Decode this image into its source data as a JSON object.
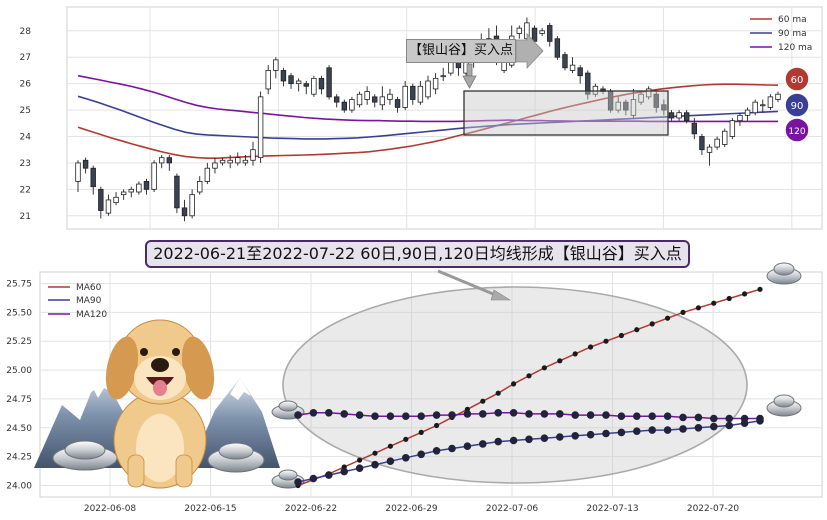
{
  "banner_text": "2022-06-21至2022-07-22 60日,90日,120日均线形成【银山谷】买入点",
  "callout_text": "【银山谷】买入点",
  "colors": {
    "ma60": "#b03a33",
    "ma90": "#3a3f96",
    "ma120": "#7a14a0",
    "up": "#ffffff",
    "down": "#3b4252"
  },
  "chart_data": [
    {
      "type": "candlestick",
      "y_ticks": [
        21,
        22,
        23,
        24,
        25,
        26,
        27,
        28
      ],
      "ylim": [
        20.5,
        28.9
      ],
      "legend": [
        "60 ma",
        "90 ma",
        "120 ma"
      ],
      "legend_position": "top-right",
      "badges": [
        "60",
        "90",
        "120"
      ],
      "grid": true,
      "candles": [
        [
          22.3,
          23.0,
          21.9,
          23.1
        ],
        [
          23.1,
          22.8,
          22.6,
          23.2
        ],
        [
          22.8,
          22.1,
          21.8,
          22.9
        ],
        [
          22.0,
          21.2,
          20.9,
          22.1
        ],
        [
          21.1,
          21.6,
          21.0,
          21.8
        ],
        [
          21.5,
          21.7,
          21.4,
          21.9
        ],
        [
          21.8,
          21.9,
          21.6,
          22.0
        ],
        [
          21.9,
          22.0,
          21.7,
          22.1
        ],
        [
          21.9,
          22.2,
          21.8,
          22.3
        ],
        [
          22.3,
          22.0,
          21.8,
          22.4
        ],
        [
          22.0,
          23.0,
          21.9,
          23.1
        ],
        [
          23.0,
          23.2,
          22.8,
          23.3
        ],
        [
          23.2,
          23.0,
          22.7,
          23.3
        ],
        [
          22.5,
          21.3,
          21.1,
          22.6
        ],
        [
          21.3,
          21.0,
          20.8,
          21.6
        ],
        [
          21.0,
          21.8,
          20.9,
          22.0
        ],
        [
          21.9,
          22.3,
          21.8,
          22.5
        ],
        [
          22.3,
          22.8,
          22.2,
          23.0
        ],
        [
          22.8,
          23.0,
          22.6,
          23.2
        ],
        [
          23.0,
          23.1,
          22.9,
          23.2
        ],
        [
          23.0,
          23.1,
          22.8,
          23.3
        ],
        [
          23.0,
          23.2,
          22.9,
          23.4
        ],
        [
          23.0,
          23.1,
          22.9,
          23.3
        ],
        [
          23.1,
          23.5,
          22.9,
          23.8
        ],
        [
          23.2,
          25.5,
          23.0,
          25.7
        ],
        [
          25.8,
          26.5,
          25.6,
          26.7
        ],
        [
          26.5,
          26.9,
          26.2,
          27.0
        ],
        [
          26.5,
          26.1,
          25.9,
          26.6
        ],
        [
          26.3,
          26.0,
          25.8,
          26.4
        ],
        [
          26.0,
          26.1,
          25.7,
          26.2
        ],
        [
          26.0,
          25.9,
          25.6,
          26.1
        ],
        [
          25.6,
          26.2,
          25.5,
          26.3
        ],
        [
          26.2,
          25.8,
          25.6,
          26.3
        ],
        [
          26.6,
          25.5,
          25.4,
          26.7
        ],
        [
          25.5,
          25.3,
          25.1,
          25.6
        ],
        [
          25.3,
          25.0,
          24.9,
          25.4
        ],
        [
          25.0,
          25.4,
          24.9,
          25.5
        ],
        [
          25.2,
          25.6,
          25.1,
          25.7
        ],
        [
          25.4,
          25.7,
          25.2,
          25.9
        ],
        [
          25.5,
          25.3,
          25.1,
          25.6
        ],
        [
          25.2,
          25.5,
          25.0,
          25.9
        ],
        [
          25.4,
          25.6,
          25.2,
          25.8
        ],
        [
          25.4,
          25.1,
          24.9,
          25.5
        ],
        [
          25.1,
          25.9,
          25.0,
          26.1
        ],
        [
          25.9,
          25.4,
          25.2,
          26.0
        ],
        [
          25.3,
          25.9,
          25.2,
          26.1
        ],
        [
          25.5,
          26.1,
          25.4,
          26.3
        ],
        [
          25.8,
          26.2,
          25.6,
          26.4
        ],
        [
          26.3,
          26.3,
          26.1,
          26.6
        ],
        [
          26.4,
          27.2,
          26.3,
          27.4
        ],
        [
          27.0,
          26.6,
          26.3,
          27.1
        ],
        [
          26.4,
          26.8,
          26.3,
          27.0
        ],
        [
          26.8,
          27.3,
          26.6,
          27.5
        ],
        [
          27.3,
          27.5,
          27.2,
          27.9
        ],
        [
          27.5,
          27.7,
          27.4,
          28.1
        ],
        [
          27.8,
          26.9,
          26.7,
          28.2
        ],
        [
          26.5,
          26.8,
          26.4,
          27.0
        ],
        [
          26.7,
          27.8,
          26.6,
          28.2
        ],
        [
          27.9,
          28.1,
          27.7,
          28.2
        ],
        [
          27.7,
          28.3,
          27.6,
          28.5
        ],
        [
          28.1,
          27.6,
          27.5,
          28.2
        ],
        [
          27.9,
          28.0,
          27.8,
          28.1
        ],
        [
          28.2,
          27.6,
          27.4,
          28.3
        ],
        [
          27.7,
          27.0,
          26.9,
          27.8
        ],
        [
          27.1,
          26.6,
          26.5,
          27.2
        ],
        [
          26.5,
          26.7,
          26.4,
          27.0
        ],
        [
          26.6,
          26.3,
          26.0,
          26.7
        ],
        [
          26.4,
          25.6,
          25.4,
          26.5
        ],
        [
          25.6,
          25.9,
          25.5,
          26.0
        ],
        [
          25.8,
          25.7,
          25.6,
          25.9
        ],
        [
          25.7,
          25.0,
          24.9,
          25.8
        ],
        [
          25.0,
          25.3,
          24.9,
          25.5
        ],
        [
          25.3,
          25.0,
          24.8,
          25.4
        ],
        [
          24.8,
          25.4,
          24.7,
          25.8
        ],
        [
          25.3,
          25.6,
          25.2,
          25.7
        ],
        [
          25.5,
          25.8,
          25.4,
          25.9
        ],
        [
          25.6,
          25.1,
          24.9,
          25.7
        ],
        [
          25.2,
          25.0,
          24.8,
          25.4
        ],
        [
          24.9,
          24.7,
          24.6,
          25.0
        ],
        [
          24.7,
          24.9,
          24.6,
          25.0
        ],
        [
          24.9,
          24.6,
          24.5,
          25.0
        ],
        [
          24.5,
          24.1,
          23.9,
          24.7
        ],
        [
          24.0,
          23.5,
          23.3,
          24.1
        ],
        [
          23.4,
          23.6,
          22.9,
          23.7
        ],
        [
          23.6,
          23.9,
          23.5,
          24.0
        ],
        [
          23.7,
          24.2,
          23.6,
          24.3
        ],
        [
          24.0,
          24.6,
          23.9,
          24.7
        ],
        [
          24.6,
          24.8,
          24.4,
          24.9
        ],
        [
          24.8,
          25.0,
          24.6,
          25.1
        ],
        [
          24.9,
          25.3,
          24.8,
          25.4
        ],
        [
          25.2,
          25.2,
          24.9,
          25.4
        ],
        [
          25.1,
          25.5,
          25.0,
          25.6
        ],
        [
          25.4,
          25.6,
          25.3,
          25.7
        ]
      ],
      "ma60": [
        24.35,
        24.22,
        24.09,
        23.96,
        23.84,
        23.72,
        23.61,
        23.5,
        23.4,
        23.31,
        23.24,
        23.2,
        23.18,
        23.18,
        23.2,
        23.22,
        23.24,
        23.26,
        23.27,
        23.28,
        23.29,
        23.3,
        23.31,
        23.33,
        23.35,
        23.37,
        23.39,
        23.42,
        23.47,
        23.52,
        23.58,
        23.64,
        23.72,
        23.8,
        23.89,
        24.0,
        24.1,
        24.2,
        24.31,
        24.42,
        24.53,
        24.64,
        24.75,
        24.86,
        24.97,
        25.07,
        25.17,
        25.26,
        25.35,
        25.44,
        25.52,
        25.6,
        25.67,
        25.73,
        25.79,
        25.84,
        25.88,
        25.92,
        25.95,
        25.97,
        25.98,
        25.98,
        25.97,
        25.96,
        25.95,
        25.94
      ],
      "ma90": [
        25.52,
        25.4,
        25.27,
        25.13,
        24.99,
        24.84,
        24.69,
        24.54,
        24.4,
        24.27,
        24.16,
        24.09,
        24.06,
        24.04,
        24.02,
        24.0,
        23.98,
        23.96,
        23.94,
        23.93,
        23.92,
        23.91,
        23.91,
        23.91,
        23.92,
        23.93,
        23.95,
        23.98,
        24.01,
        24.05,
        24.09,
        24.13,
        24.17,
        24.21,
        24.25,
        24.29,
        24.33,
        24.36,
        24.39,
        24.42,
        24.45,
        24.47,
        24.49,
        24.51,
        24.53,
        24.55,
        24.57,
        24.59,
        24.61,
        24.63,
        24.65,
        24.67,
        24.69,
        24.71,
        24.73,
        24.75,
        24.77,
        24.79,
        24.81,
        24.83,
        24.85,
        24.87,
        24.89,
        24.91,
        24.93,
        24.95
      ],
      "ma120": [
        26.3,
        26.22,
        26.14,
        26.06,
        25.98,
        25.89,
        25.79,
        25.68,
        25.55,
        25.42,
        25.29,
        25.18,
        25.1,
        25.04,
        25.0,
        24.96,
        24.92,
        24.88,
        24.84,
        24.8,
        24.76,
        24.72,
        24.69,
        24.66,
        24.64,
        24.62,
        24.61,
        24.6,
        24.6,
        24.59,
        24.58,
        24.58,
        24.57,
        24.57,
        24.57,
        24.57,
        24.58,
        24.59,
        24.6,
        24.61,
        24.62,
        24.61,
        24.6,
        24.6,
        24.59,
        24.59,
        24.58,
        24.58,
        24.58,
        24.58,
        24.58,
        24.58,
        24.58,
        24.57,
        24.57,
        24.57,
        24.57,
        24.57,
        24.57,
        24.57,
        24.57,
        24.57,
        24.57,
        24.57,
        24.57,
        24.57
      ]
    },
    {
      "type": "line",
      "x_ticks": [
        "2022-06-08",
        "2022-06-15",
        "2022-06-22",
        "2022-06-29",
        "2022-07-06",
        "2022-07-13",
        "2022-07-20"
      ],
      "y_ticks": [
        "24.00",
        "24.25",
        "24.50",
        "24.75",
        "25.00",
        "25.25",
        "25.50",
        "25.75"
      ],
      "ylim": [
        23.9,
        25.85
      ],
      "legend": [
        "MA60",
        "MA90",
        "MA120"
      ],
      "legend_position": "top-left",
      "grid": true,
      "series": [
        {
          "name": "MA60",
          "values": [
            24.0,
            24.05,
            24.1,
            24.16,
            24.22,
            24.28,
            24.34,
            24.4,
            24.46,
            24.52,
            24.59,
            24.66,
            24.73,
            24.8,
            24.88,
            24.95,
            25.02,
            25.08,
            25.14,
            25.2,
            25.25,
            25.3,
            25.35,
            25.4,
            25.45,
            25.5,
            25.54,
            25.58,
            25.62,
            25.66,
            25.7
          ]
        },
        {
          "name": "MA90",
          "values": [
            24.03,
            24.06,
            24.09,
            24.12,
            24.15,
            24.18,
            24.21,
            24.24,
            24.27,
            24.3,
            24.32,
            24.34,
            24.36,
            24.38,
            24.39,
            24.4,
            24.41,
            24.42,
            24.43,
            24.44,
            24.45,
            24.46,
            24.47,
            24.48,
            24.48,
            24.49,
            24.5,
            24.51,
            24.52,
            24.54,
            24.56
          ]
        },
        {
          "name": "MA120",
          "values": [
            24.61,
            24.63,
            24.63,
            24.62,
            24.61,
            24.6,
            24.6,
            24.6,
            24.6,
            24.61,
            24.61,
            24.62,
            24.62,
            24.63,
            24.63,
            24.62,
            24.62,
            24.62,
            24.61,
            24.61,
            24.61,
            24.6,
            24.6,
            24.6,
            24.6,
            24.59,
            24.59,
            24.58,
            24.58,
            24.58,
            24.58
          ]
        }
      ]
    }
  ]
}
